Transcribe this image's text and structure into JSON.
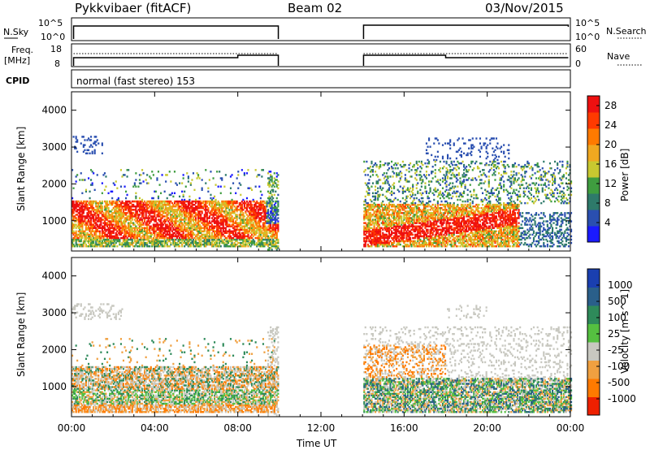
{
  "header": {
    "radar": "Pykkvibaer (fitACF)",
    "beam": "Beam 02",
    "date": "03/Nov/2015"
  },
  "status_panels": {
    "nsky_label": "N.Sky",
    "nsky_ticks": [
      "10^5",
      "10^0"
    ],
    "nsearch_label": "N.Search",
    "nsearch_ticks": [
      "10^5",
      "10^0"
    ],
    "freq_label_line1": "Freq.",
    "freq_label_line2": "[MHz]",
    "freq_ticks": [
      "18",
      "8"
    ],
    "nave_label": "Nave",
    "nave_ticks": [
      "60",
      "0"
    ],
    "cpid_label": "CPID",
    "cpid_text": "normal (fast stereo) 153"
  },
  "chart_data": [
    {
      "type": "heatmap",
      "panel": "power",
      "ylabel": "Slant Range [km]",
      "xlabel": "",
      "x_ticks": [
        "00:00",
        "04:00",
        "08:00",
        "12:00",
        "16:00",
        "20:00",
        "00:00"
      ],
      "xlim_hours": [
        0,
        24
      ],
      "ylim": [
        180,
        4500
      ],
      "y_ticks": [
        1000,
        2000,
        3000,
        4000
      ],
      "data_gap_hours": [
        10,
        14
      ],
      "colorbar": {
        "label": "Power [dB]",
        "ticks": [
          "4",
          "8",
          "12",
          "16",
          "20",
          "24",
          "28"
        ],
        "range": [
          0,
          30
        ],
        "colors": [
          "#1a1aff",
          "#2a4fb0",
          "#2e7a6a",
          "#3f9d3f",
          "#c8c830",
          "#f0a820",
          "#ff7a00",
          "#ff3a00",
          "#ee1010"
        ]
      },
      "regions": [
        {
          "t": [
            0,
            9.9
          ],
          "r": [
            400,
            1500
          ],
          "level": "22-28 dB"
        },
        {
          "t": [
            14,
            19.5
          ],
          "r": [
            350,
            1400
          ],
          "level": "20-28 dB"
        },
        {
          "t": [
            14.2,
            21
          ],
          "r": [
            1500,
            3300
          ],
          "level": "4-12 dB"
        }
      ]
    },
    {
      "type": "heatmap",
      "panel": "velocity",
      "ylabel": "Slant Range [km]",
      "xlabel": "Time UT",
      "x_ticks": [
        "00:00",
        "04:00",
        "08:00",
        "12:00",
        "16:00",
        "20:00",
        "00:00"
      ],
      "xlim_hours": [
        0,
        24
      ],
      "ylim": [
        180,
        4500
      ],
      "y_ticks": [
        1000,
        2000,
        3000,
        4000
      ],
      "data_gap_hours": [
        10,
        14
      ],
      "colorbar": {
        "label": "Velocity [m s^-1]",
        "ticks": [
          "1000",
          "500",
          "100",
          "25",
          "-25",
          "-100",
          "-500",
          "-1000"
        ],
        "colors": [
          "#1a3fb0",
          "#2a5f8a",
          "#2e8a5a",
          "#55c040",
          "#c8c8c0",
          "#f0a040",
          "#ff7a00",
          "#ee2000"
        ]
      },
      "regions": [
        {
          "t": [
            0,
            9.9
          ],
          "r": [
            400,
            1500
          ],
          "level": "-25 to 25 m/s with negative patches"
        },
        {
          "t": [
            14,
            20
          ],
          "r": [
            400,
            1200
          ],
          "level": "-100 to 100 m/s"
        },
        {
          "t": [
            15,
            18
          ],
          "r": [
            1300,
            2100
          ],
          "level": "-500 to -100 m/s"
        }
      ]
    }
  ]
}
